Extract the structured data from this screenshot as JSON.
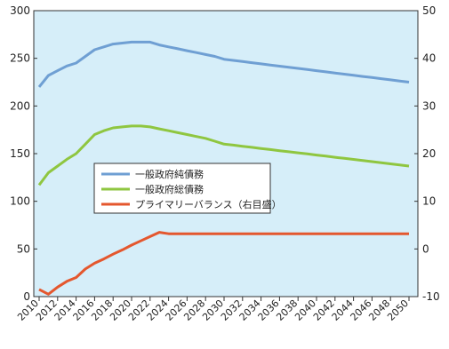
{
  "chart_data": {
    "type": "line",
    "x": [
      2010,
      2011,
      2012,
      2013,
      2014,
      2015,
      2016,
      2017,
      2018,
      2019,
      2020,
      2021,
      2022,
      2023,
      2024,
      2025,
      2026,
      2027,
      2028,
      2029,
      2030,
      2031,
      2032,
      2033,
      2034,
      2035,
      2036,
      2037,
      2038,
      2039,
      2040,
      2041,
      2042,
      2043,
      2044,
      2045,
      2046,
      2047,
      2048,
      2049,
      2050
    ],
    "xlim": [
      2010,
      2050
    ],
    "xticks": [
      2010,
      2012,
      2014,
      2016,
      2018,
      2020,
      2022,
      2024,
      2026,
      2028,
      2030,
      2032,
      2034,
      2036,
      2038,
      2040,
      2042,
      2044,
      2046,
      2048,
      2050
    ],
    "ylim": [
      0,
      300
    ],
    "yticks": [
      0,
      50,
      100,
      150,
      200,
      250,
      300
    ],
    "y2lim": [
      -10,
      50
    ],
    "y2ticks": [
      -10,
      0,
      10,
      20,
      30,
      40,
      50
    ],
    "legend": "center-left",
    "grid": false,
    "series": [
      {
        "name": "一般政府純債務",
        "color": "#6f9fd3",
        "values": [
          220,
          232,
          237,
          242,
          245,
          252,
          259,
          262,
          265,
          266,
          267,
          267,
          267,
          264,
          262,
          260,
          258,
          256,
          254,
          252,
          249,
          247.8,
          246.6,
          245.4,
          244.2,
          243,
          241.8,
          240.6,
          239.4,
          238.2,
          237,
          235.8,
          234.6,
          233.4,
          232.2,
          231,
          229.8,
          228.6,
          227.4,
          226.2,
          225
        ]
      },
      {
        "name": "一般政府総債務",
        "color": "#8fc640",
        "values": [
          117,
          130,
          137,
          144,
          150,
          160,
          170,
          174,
          177,
          178,
          179,
          179,
          178,
          176,
          174,
          172,
          170,
          168,
          166,
          163,
          160,
          158.9,
          157.7,
          156.6,
          155.4,
          154.3,
          153.1,
          152,
          150.8,
          149.7,
          148.5,
          147.4,
          146.2,
          145.1,
          143.9,
          142.8,
          141.6,
          140.5,
          139.3,
          138.2,
          137
        ]
      },
      {
        "name": "プライマリーバランス（右目盛）",
        "color": "#e4572e",
        "axis": "y2",
        "values": [
          -8.5,
          -9.5,
          -8,
          -6.8,
          -6,
          -4.2,
          -3,
          -2.1,
          -1.1,
          -0.2,
          0.8,
          1.7,
          2.6,
          3.5,
          3.2,
          3.2,
          3.2,
          3.2,
          3.2,
          3.2,
          3.2,
          3.2,
          3.2,
          3.2,
          3.2,
          3.2,
          3.2,
          3.2,
          3.2,
          3.2,
          3.2,
          3.2,
          3.2,
          3.2,
          3.2,
          3.2,
          3.2,
          3.2,
          3.2,
          3.2,
          3.2
        ]
      }
    ]
  }
}
